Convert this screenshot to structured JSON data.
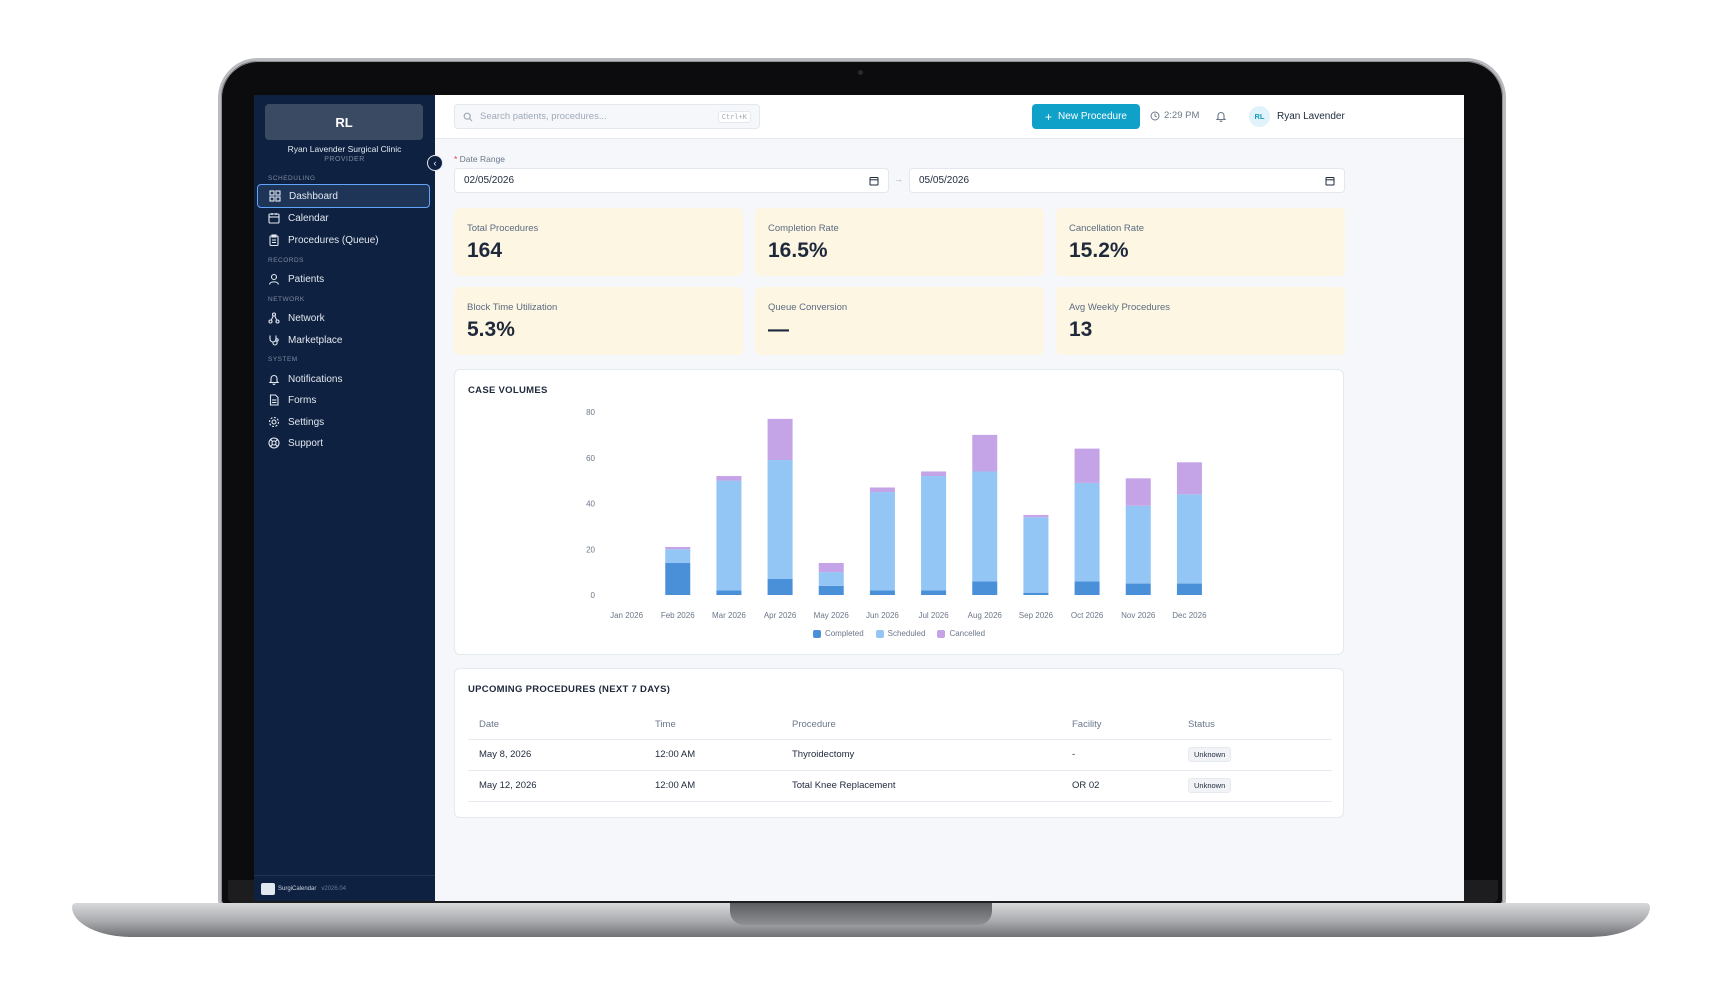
{
  "sidebar": {
    "org_initials": "RL",
    "org_name": "Ryan Lavender Surgical Clinic",
    "org_role": "PROVIDER",
    "sections": {
      "scheduling": "SCHEDULING",
      "records": "RECORDS",
      "network": "NETWORK",
      "system": "SYSTEM"
    },
    "items": [
      {
        "label": "Dashboard",
        "icon": "grid-icon",
        "active": true
      },
      {
        "label": "Calendar",
        "icon": "calendar-icon"
      },
      {
        "label": "Procedures (Queue)",
        "icon": "clipboard-icon"
      },
      {
        "label": "Patients",
        "icon": "user-icon"
      },
      {
        "label": "Network",
        "icon": "network-icon"
      },
      {
        "label": "Marketplace",
        "icon": "stethoscope-icon"
      },
      {
        "label": "Notifications",
        "icon": "bell-icon"
      },
      {
        "label": "Forms",
        "icon": "document-icon"
      },
      {
        "label": "Settings",
        "icon": "gear-icon"
      },
      {
        "label": "Support",
        "icon": "lifebuoy-icon"
      }
    ],
    "footer_brand": "SurgiCalendar",
    "footer_version": "v2026.04"
  },
  "header": {
    "search_placeholder": "Search patients, procedures...",
    "search_shortcut": "Ctrl+K",
    "new_button": "New Procedure",
    "time": "2:29 PM",
    "user_initials": "RL",
    "user_name": "Ryan Lavender"
  },
  "filters": {
    "date_range_label": "Date Range",
    "start_date": "02/05/2026",
    "end_date": "05/05/2026"
  },
  "kpis": [
    {
      "label": "Total Procedures",
      "value": "164"
    },
    {
      "label": "Completion Rate",
      "value": "16.5%"
    },
    {
      "label": "Cancellation Rate",
      "value": "15.2%"
    },
    {
      "label": "Block Time Utilization",
      "value": "5.3%"
    },
    {
      "label": "Queue Conversion",
      "value": "—"
    },
    {
      "label": "Avg Weekly Procedures",
      "value": "13"
    }
  ],
  "case_volumes": {
    "title": "CASE VOLUMES",
    "colors": {
      "completed": "#4a90d9",
      "scheduled": "#93c5f5",
      "cancelled": "#c4a3e6"
    }
  },
  "chart_data": {
    "type": "bar",
    "stacked": true,
    "categories": [
      "Jan 2026",
      "Feb 2026",
      "Mar 2026",
      "Apr 2026",
      "May 2026",
      "Jun 2026",
      "Jul 2026",
      "Aug 2026",
      "Sep 2026",
      "Oct 2026",
      "Nov 2026",
      "Dec 2026"
    ],
    "series": [
      {
        "name": "Completed",
        "values": [
          0,
          14,
          2,
          7,
          4,
          2,
          2,
          6,
          1,
          6,
          5,
          5
        ]
      },
      {
        "name": "Scheduled",
        "values": [
          0,
          6,
          48,
          52,
          6,
          43,
          50,
          48,
          33,
          43,
          34,
          39
        ]
      },
      {
        "name": "Cancelled",
        "values": [
          0,
          1,
          2,
          18,
          4,
          2,
          2,
          16,
          1,
          15,
          12,
          14
        ]
      }
    ],
    "yticks": [
      0,
      20,
      40,
      60,
      80
    ],
    "ylim": [
      0,
      80
    ],
    "legend": "bottom",
    "grid": false
  },
  "upcoming": {
    "title": "UPCOMING PROCEDURES (NEXT 7 DAYS)",
    "columns": [
      "Date",
      "Time",
      "Procedure",
      "Facility",
      "Status"
    ],
    "rows": [
      {
        "date": "May 8, 2026",
        "time": "12:00 AM",
        "procedure": "Thyroidectomy",
        "facility": "-",
        "status": "Unknown"
      },
      {
        "date": "May 12, 2026",
        "time": "12:00 AM",
        "procedure": "Total Knee Replacement",
        "facility": "OR 02",
        "status": "Unknown"
      }
    ]
  }
}
